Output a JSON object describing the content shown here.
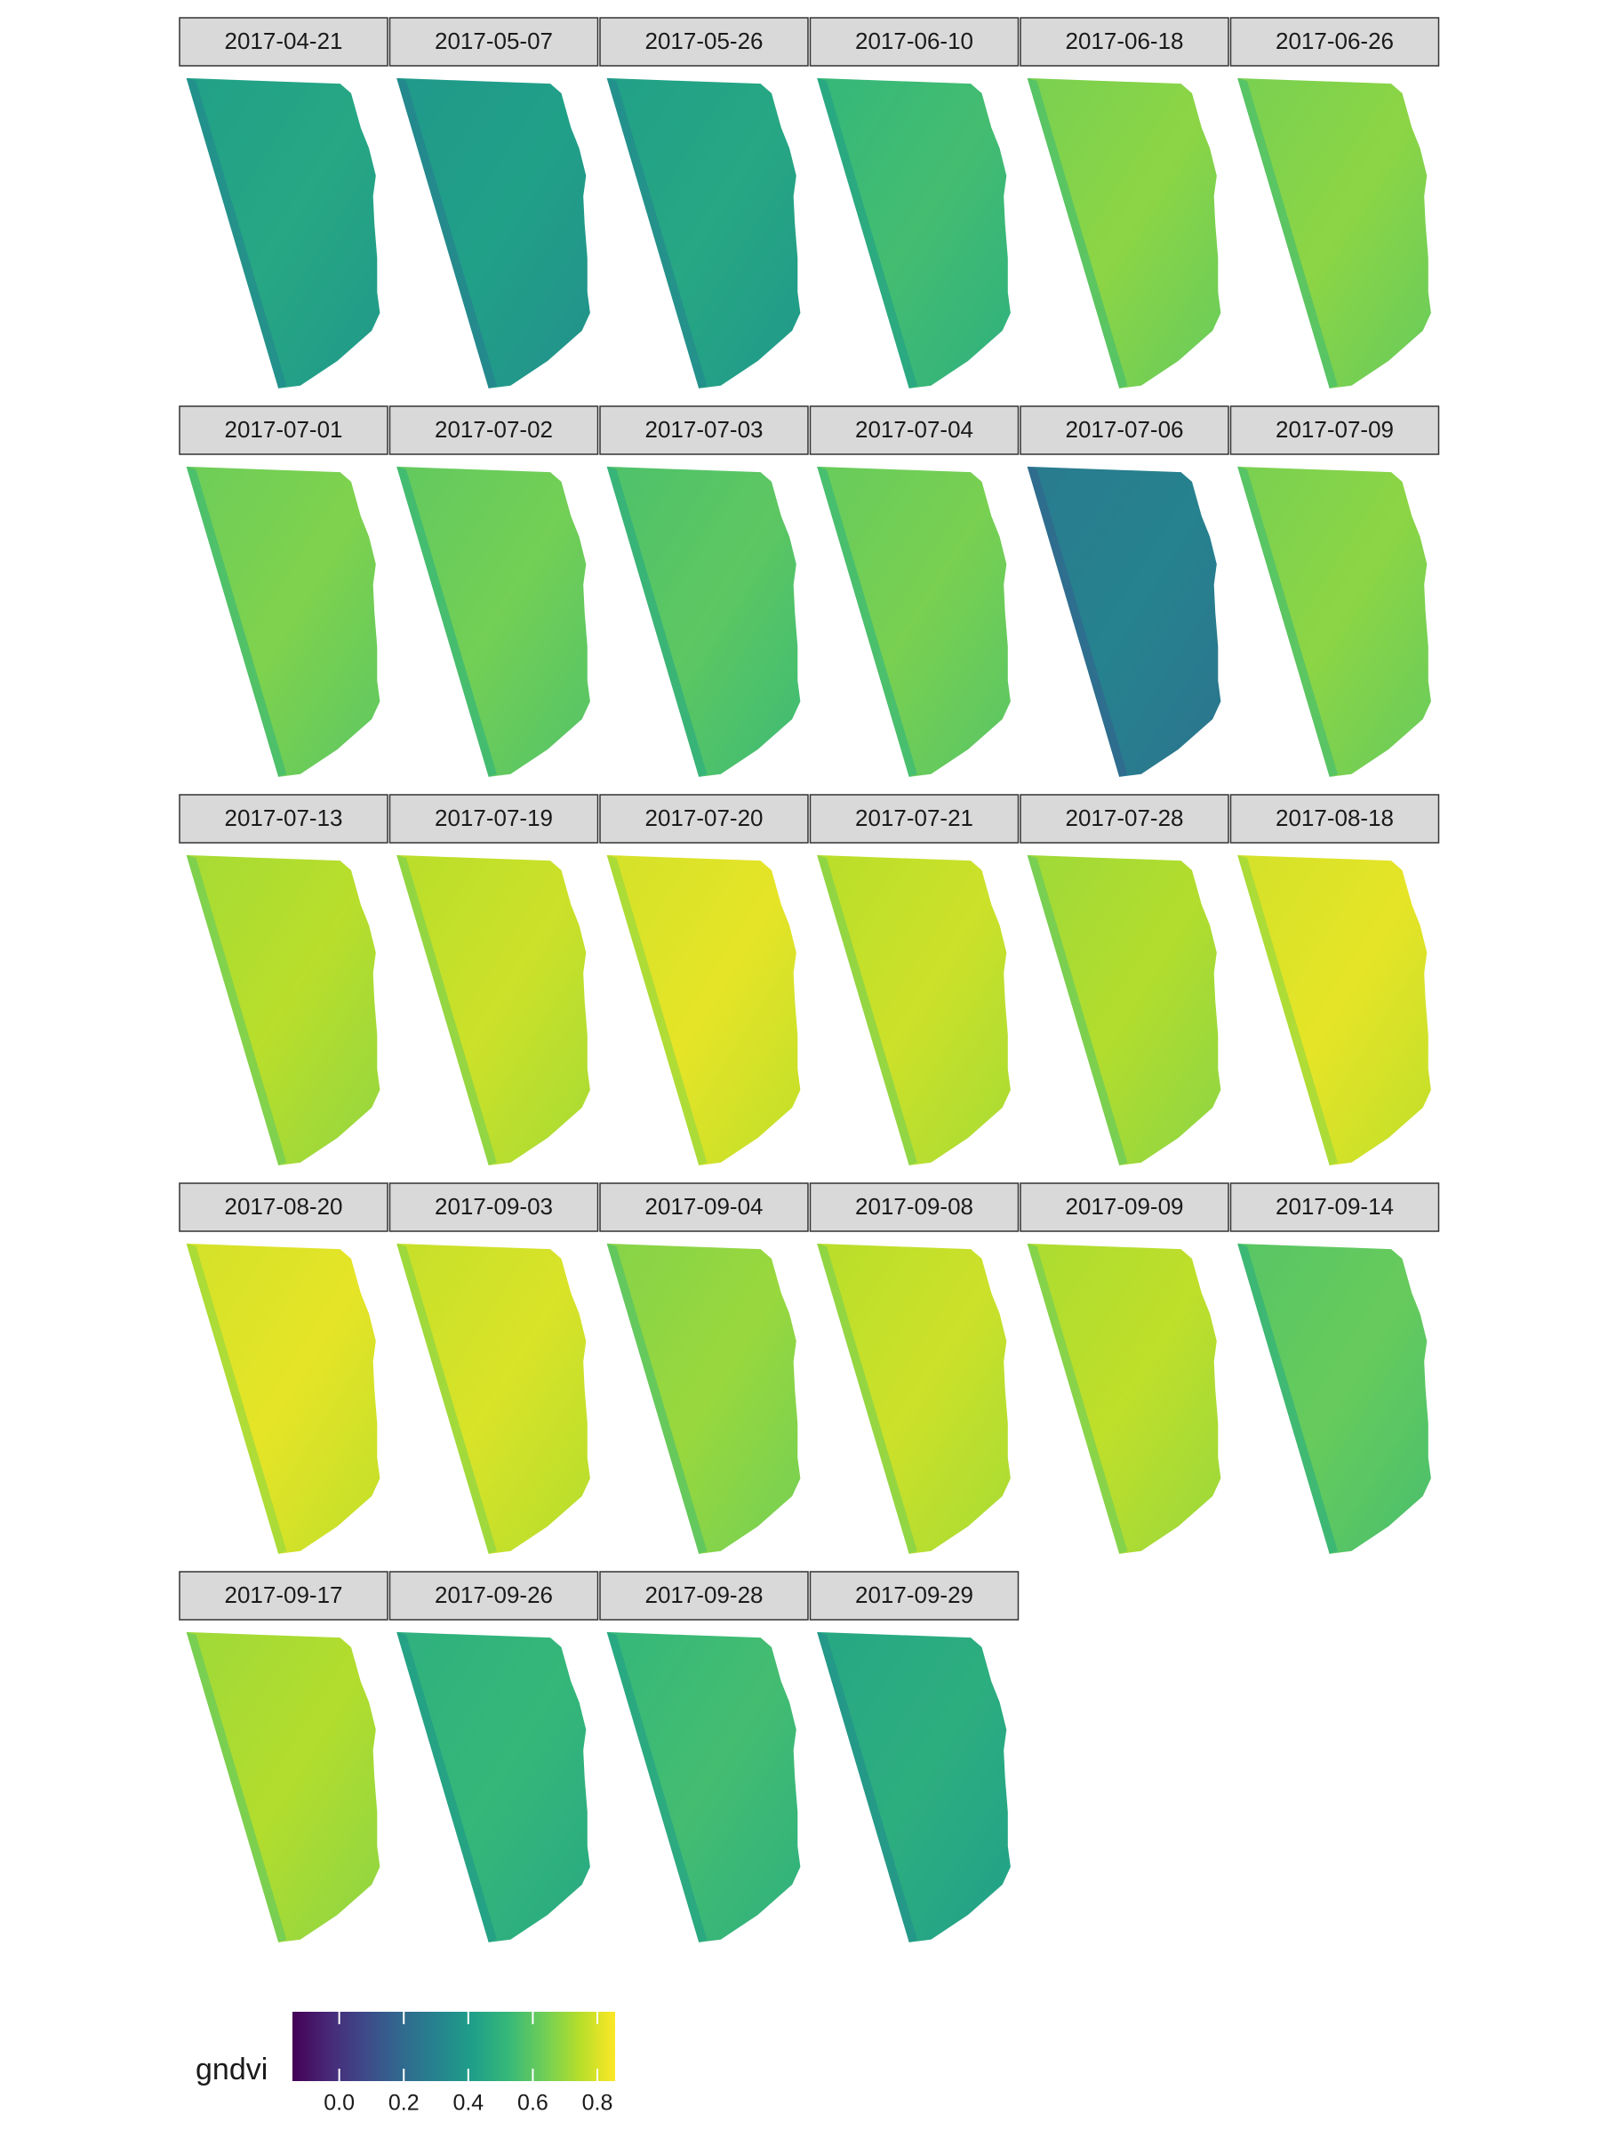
{
  "chart_data": {
    "type": "raster-facet",
    "panels": [
      "2017-04-21",
      "2017-05-07",
      "2017-05-26",
      "2017-06-10",
      "2017-06-18",
      "2017-06-26",
      "2017-07-01",
      "2017-07-02",
      "2017-07-03",
      "2017-07-04",
      "2017-07-06",
      "2017-07-09",
      "2017-07-13",
      "2017-07-19",
      "2017-07-20",
      "2017-07-21",
      "2017-07-28",
      "2017-08-18",
      "2017-08-20",
      "2017-09-03",
      "2017-09-04",
      "2017-09-08",
      "2017-09-09",
      "2017-09-14",
      "2017-09-17",
      "2017-09-26",
      "2017-09-28",
      "2017-09-29"
    ],
    "values": [
      0.45,
      0.42,
      0.45,
      0.55,
      0.68,
      0.68,
      0.66,
      0.64,
      0.6,
      0.65,
      0.3,
      0.68,
      0.75,
      0.78,
      0.82,
      0.78,
      0.74,
      0.82,
      0.82,
      0.8,
      0.7,
      0.78,
      0.76,
      0.62,
      0.74,
      0.52,
      0.55,
      0.48
    ],
    "colorbar_title": "gndvi",
    "clim": [
      -0.145,
      0.855
    ],
    "cticks": [
      {
        "value": 0,
        "label": "0.0"
      },
      0.2,
      0.4,
      0.6,
      0.8
    ],
    "colors": [
      "#440154",
      "#482878",
      "#3e4989",
      "#31688e",
      "#26828e",
      "#1f9e89",
      "#35b779",
      "#6ece58",
      "#b5de2b",
      "#fde725"
    ],
    "ncol": 6
  }
}
